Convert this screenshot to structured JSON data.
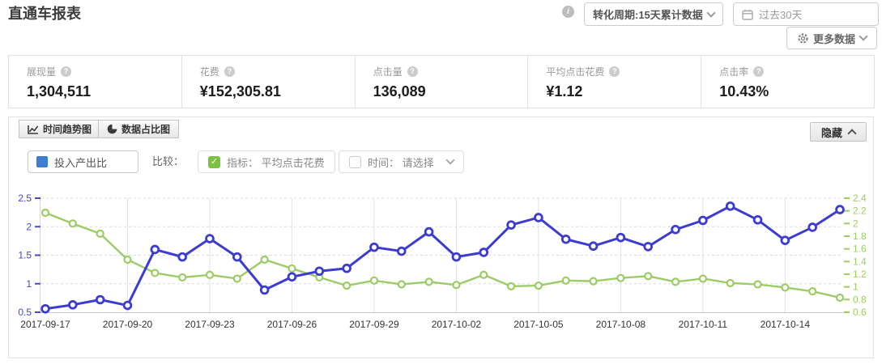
{
  "page": {
    "title": "直通车报表"
  },
  "header": {
    "conversion_dropdown": "转化周期:15天累计数据",
    "date_range": "过去30天",
    "more_data_label": "更多数据"
  },
  "stats": [
    {
      "label": "展现量",
      "value": "1,304,511"
    },
    {
      "label": "花费",
      "value": "¥152,305.81"
    },
    {
      "label": "点击量",
      "value": "136,089"
    },
    {
      "label": "平均点击花费",
      "value": "¥1.12"
    },
    {
      "label": "点击率",
      "value": "10.43%"
    }
  ],
  "chart_panel": {
    "tabs": [
      {
        "label": "时间趋势图"
      },
      {
        "label": "数据占比图"
      }
    ],
    "hide_button": "隐藏",
    "legend": {
      "label": "投入产出比",
      "color": "#3d7ed2"
    },
    "compare_label": "比较：",
    "metric_checkbox": {
      "label": "指标： 平均点击花费",
      "checked": true,
      "color": "#7bc242"
    },
    "time_checkbox": {
      "label": "时间： 请选择",
      "checked": false
    }
  },
  "chart_data": {
    "type": "line",
    "x": [
      "2017-09-17",
      "2017-09-18",
      "2017-09-19",
      "2017-09-20",
      "2017-09-21",
      "2017-09-22",
      "2017-09-23",
      "2017-09-24",
      "2017-09-25",
      "2017-09-26",
      "2017-09-27",
      "2017-09-28",
      "2017-09-29",
      "2017-09-30",
      "2017-10-01",
      "2017-10-02",
      "2017-10-03",
      "2017-10-04",
      "2017-10-05",
      "2017-10-06",
      "2017-10-07",
      "2017-10-08",
      "2017-10-09",
      "2017-10-10",
      "2017-10-11",
      "2017-10-12",
      "2017-10-13",
      "2017-10-14",
      "2017-10-15",
      "2017-10-16"
    ],
    "x_tick_interval": 3,
    "series": [
      {
        "name": "投入产出比",
        "axis": "left",
        "color": "#3c3cd0",
        "values": [
          0.56,
          0.63,
          0.72,
          0.62,
          1.6,
          1.47,
          1.79,
          1.47,
          0.89,
          1.12,
          1.22,
          1.27,
          1.64,
          1.57,
          1.91,
          1.47,
          1.55,
          2.03,
          2.16,
          1.78,
          1.66,
          1.81,
          1.65,
          1.95,
          2.11,
          2.36,
          2.12,
          1.76,
          1.99,
          2.3
        ]
      },
      {
        "name": "平均点击花费",
        "axis": "right",
        "color": "#9ccc65",
        "values": [
          2.17,
          2.0,
          1.84,
          1.43,
          1.22,
          1.15,
          1.19,
          1.13,
          1.43,
          1.29,
          1.15,
          1.02,
          1.1,
          1.04,
          1.08,
          1.03,
          1.19,
          1.01,
          1.02,
          1.1,
          1.09,
          1.14,
          1.17,
          1.08,
          1.13,
          1.06,
          1.04,
          0.99,
          0.93,
          0.83
        ]
      }
    ],
    "left_axis": {
      "min": 0.5,
      "max": 2.5,
      "ticks": [
        0.5,
        1,
        1.5,
        2,
        2.5
      ],
      "color": "#4646d8"
    },
    "right_axis": {
      "min": 0.6,
      "max": 2.4,
      "ticks": [
        0.6,
        0.8,
        1,
        1.2,
        1.4,
        1.6,
        1.8,
        2,
        2.2,
        2.4
      ],
      "color": "#9ccc65"
    },
    "grid": {
      "horizontal": "dashed",
      "vertical": "solid"
    },
    "legend_position": "top-left"
  }
}
